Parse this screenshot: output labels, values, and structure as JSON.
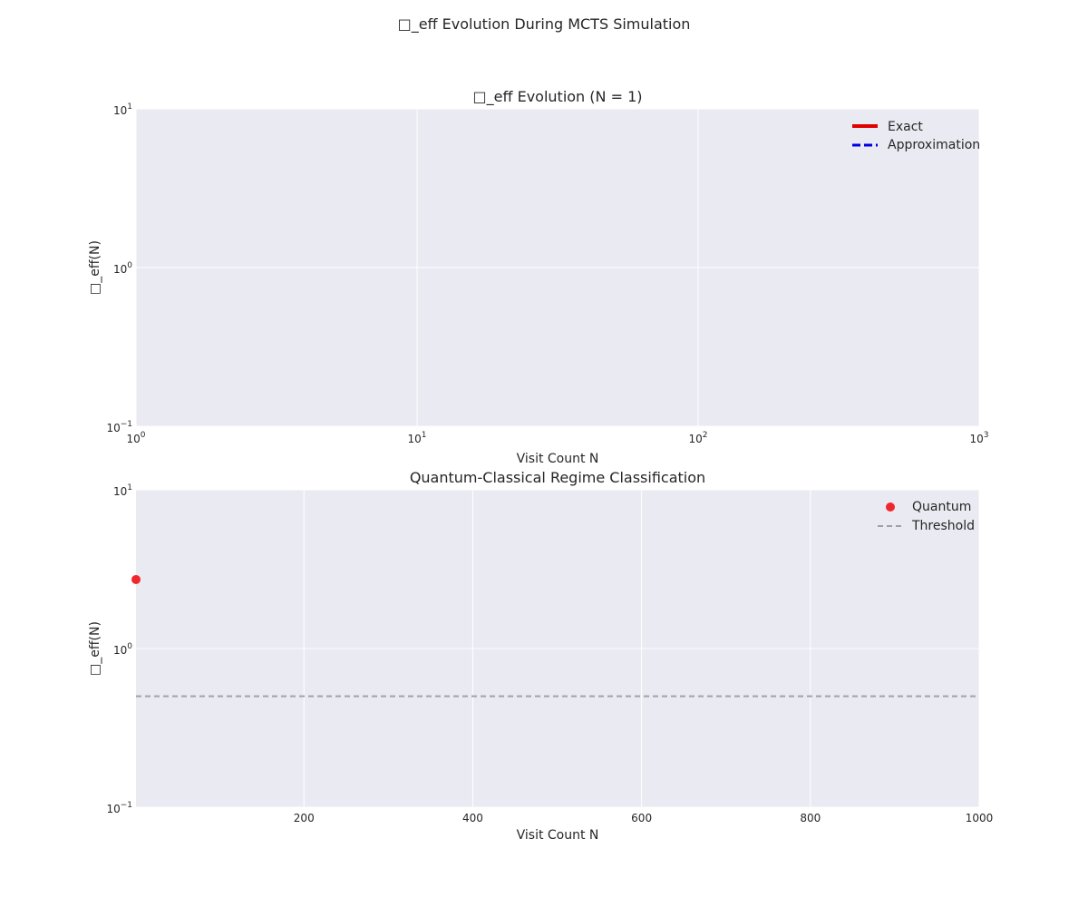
{
  "figure": {
    "suptitle": "□_eff Evolution During MCTS Simulation"
  },
  "colors": {
    "axes_bg": "#eaeaf2",
    "grid": "#ffffff",
    "exact": "#e00000",
    "approx": "#0000e0",
    "quantum": "#f0282d",
    "threshold": "#a0a0a6"
  },
  "chart_data": [
    {
      "type": "line",
      "title": "□_eff Evolution (N = 1)",
      "xlabel": "Visit Count N",
      "ylabel": "□_eff(N)",
      "xscale": "log",
      "yscale": "log",
      "xlim": [
        1,
        1000
      ],
      "ylim": [
        0.1,
        10
      ],
      "xticks": [
        {
          "value": 1,
          "base": "10",
          "exp": "0"
        },
        {
          "value": 10,
          "base": "10",
          "exp": "1"
        },
        {
          "value": 100,
          "base": "10",
          "exp": "2"
        },
        {
          "value": 1000,
          "base": "10",
          "exp": "3"
        }
      ],
      "yticks": [
        {
          "value": 0.1,
          "base": "10",
          "exp": "−1"
        },
        {
          "value": 1,
          "base": "10",
          "exp": "0"
        },
        {
          "value": 10,
          "base": "10",
          "exp": "1"
        }
      ],
      "grid": true,
      "legend_position": "top-right",
      "series": [
        {
          "name": "Exact",
          "style": "solid",
          "x": [],
          "y": []
        },
        {
          "name": "Approximation",
          "style": "dashed",
          "x": [],
          "y": []
        }
      ]
    },
    {
      "type": "scatter",
      "title": "Quantum-Classical Regime Classification",
      "xlabel": "Visit Count N",
      "ylabel": "□_eff(N)",
      "xscale": "linear",
      "yscale": "log",
      "xlim": [
        1,
        1000
      ],
      "ylim": [
        0.1,
        10
      ],
      "xticks": [
        {
          "value": 200,
          "label": "200"
        },
        {
          "value": 400,
          "label": "400"
        },
        {
          "value": 600,
          "label": "600"
        },
        {
          "value": 800,
          "label": "800"
        },
        {
          "value": 1000,
          "label": "1000"
        }
      ],
      "yticks": [
        {
          "value": 0.1,
          "base": "10",
          "exp": "−1"
        },
        {
          "value": 1,
          "base": "10",
          "exp": "0"
        },
        {
          "value": 10,
          "base": "10",
          "exp": "1"
        }
      ],
      "grid": true,
      "legend_position": "top-right",
      "series": [
        {
          "name": "Quantum",
          "style": "marker",
          "x": [
            1
          ],
          "y": [
            2.72
          ]
        },
        {
          "name": "Threshold",
          "style": "dashed-hline",
          "y": 0.5
        }
      ]
    }
  ]
}
